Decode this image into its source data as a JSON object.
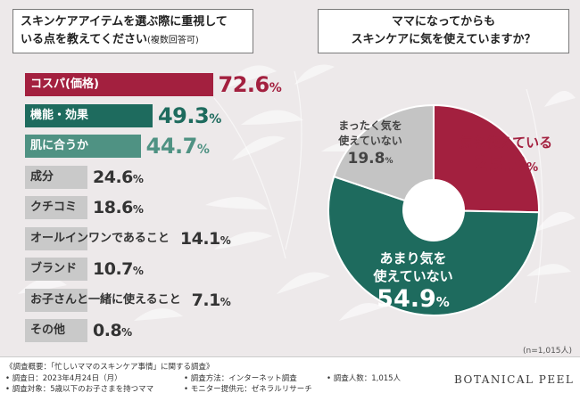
{
  "left_title": {
    "line1": "スキンケアアイテムを選ぶ際に重視して",
    "line2": "いる点を教えてください",
    "note": "(複数回答可)"
  },
  "right_title": {
    "line1": "ママになってからも",
    "line2": "スキンケアに気を使えていますか？"
  },
  "chart_data": [
    {
      "type": "bar",
      "orientation": "horizontal",
      "categories": [
        "コスパ(価格)",
        "機能・効果",
        "肌に合うか",
        "成分",
        "クチコミ",
        "オールインワンであること",
        "ブランド",
        "お子さんと一緒に使えること",
        "その他"
      ],
      "values": [
        72.6,
        49.3,
        44.7,
        24.6,
        18.6,
        14.1,
        10.7,
        7.1,
        0.8
      ],
      "unit": "%",
      "value_labels": [
        "72.6",
        "49.3",
        "44.7",
        "24.6",
        "18.6",
        "14.1",
        "10.7",
        "7.1",
        "0.8"
      ],
      "colors": [
        "#a3203f",
        "#1e6b5e",
        "#4f9283",
        "#c9c9c9",
        "#c9c9c9",
        "#c9c9c9",
        "#c9c9c9",
        "#c9c9c9",
        "#c9c9c9"
      ],
      "label_colors": [
        "#ffffff",
        "#ffffff",
        "#ffffff",
        "#333333",
        "#333333",
        "#333333",
        "#333333",
        "#333333",
        "#333333"
      ],
      "value_colors": [
        "#a3203f",
        "#1e6b5e",
        "#4f9283",
        "#333333",
        "#333333",
        "#333333",
        "#333333",
        "#333333",
        "#333333"
      ]
    },
    {
      "type": "pie",
      "style": "donut",
      "slices": [
        {
          "label_lines": [
            "気を使えている"
          ],
          "value": 25.3,
          "value_label": "25.3",
          "color": "#a3203f"
        },
        {
          "label_lines": [
            "あまり気を",
            "使えていない"
          ],
          "value": 54.9,
          "value_label": "54.9",
          "color": "#1e6b5e"
        },
        {
          "label_lines": [
            "まったく気を",
            "使えていない"
          ],
          "value": 19.8,
          "value_label": "19.8",
          "color": "#c4c4c4"
        }
      ],
      "unit": "%"
    }
  ],
  "sample_size": "(n=1,015人)",
  "footer": {
    "survey_title": "《調査概要：「忙しいママのスキンケア事情」に関する調査》",
    "date": "• 調査日：2023年4月24日（月）",
    "target": "• 調査対象：5歳以下のお子さまを持つママ",
    "method": "• 調査方法：インターネット調査",
    "monitor": "• モニター提供元：ゼネラルリサーチ",
    "count": "• 調査人数：1,015人",
    "brand": "BOTANICAL PEEL"
  }
}
